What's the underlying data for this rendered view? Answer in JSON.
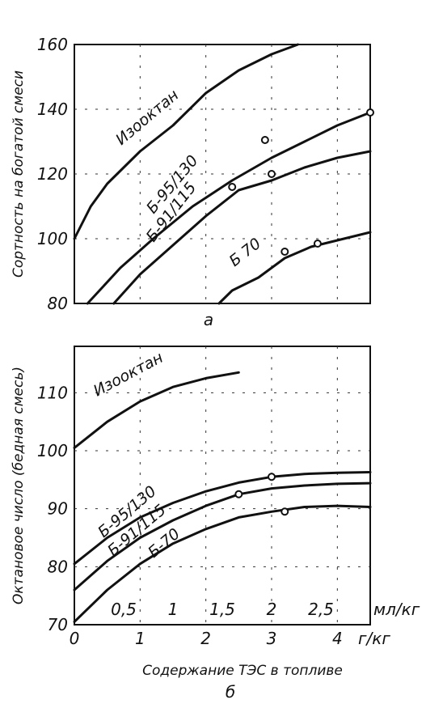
{
  "chart_data": [
    {
      "panel_label": "а",
      "type": "line",
      "ylabel": "Сортность на богатой смеси",
      "ylim": [
        80,
        160
      ],
      "xlim": [
        0,
        4.5
      ],
      "y_ticks": [
        "80",
        "100",
        "120",
        "140",
        "160"
      ],
      "grid": true,
      "series": [
        {
          "name": "Изооктан",
          "x": [
            0,
            0.25,
            0.5,
            1,
            1.5,
            2,
            2.5,
            3,
            3.4
          ],
          "y": [
            100,
            110,
            117,
            127,
            135,
            145,
            152,
            157,
            160
          ],
          "markers": []
        },
        {
          "name": "Б-95/130",
          "x": [
            0.2,
            0.7,
            1.2,
            1.8,
            2.4,
            3,
            3.5,
            4,
            4.5
          ],
          "y": [
            80,
            91,
            100,
            110,
            118,
            125,
            130,
            135,
            139
          ],
          "markers": [
            [
              2.9,
              130.5
            ],
            [
              4.5,
              139
            ]
          ]
        },
        {
          "name": "Б-91/115",
          "x": [
            0.6,
            1,
            1.5,
            2,
            2.5,
            3,
            3.5,
            4,
            4.5
          ],
          "y": [
            80,
            89,
            98,
            107,
            115,
            118,
            122,
            125,
            127
          ],
          "markers": [
            [
              2.4,
              116
            ],
            [
              3.0,
              120
            ]
          ]
        },
        {
          "name": "Б 70",
          "x": [
            2.2,
            2.4,
            2.8,
            3.2,
            3.6,
            4,
            4.5
          ],
          "y": [
            80,
            84,
            88,
            94,
            97.5,
            99.5,
            102
          ],
          "markers": [
            [
              3.2,
              96
            ],
            [
              3.7,
              98.5
            ]
          ]
        }
      ]
    },
    {
      "panel_label": "б",
      "type": "line",
      "ylabel": "Октановое число (бедная смесь)",
      "xlabel": "Содержание ТЭС в топливе",
      "ylim": [
        70,
        118
      ],
      "xlim": [
        0,
        4.5
      ],
      "y_ticks": [
        "70",
        "80",
        "90",
        "100",
        "110"
      ],
      "x_ticks_gkg": [
        "0",
        "1",
        "2",
        "3",
        "4"
      ],
      "x_unit_gkg": "г/кг",
      "x_ticks_mlkg": [
        "0,5",
        "1",
        "1,5",
        "2",
        "2,5"
      ],
      "x_unit_mlkg": "мл/кг",
      "grid": true,
      "series": [
        {
          "name": "Изооктан",
          "x": [
            0,
            0.5,
            1,
            1.5,
            2,
            2.5
          ],
          "y": [
            100.5,
            105,
            108.5,
            111,
            112.5,
            113.5
          ],
          "markers": []
        },
        {
          "name": "Б-95/130",
          "x": [
            0,
            0.5,
            1,
            1.5,
            2,
            2.5,
            3,
            3.5,
            4,
            4.5
          ],
          "y": [
            80.5,
            85,
            88.5,
            91,
            93,
            94.5,
            95.5,
            96,
            96.2,
            96.3
          ],
          "markers": [
            [
              3.0,
              95.5
            ]
          ]
        },
        {
          "name": "Б-91/115",
          "x": [
            0,
            0.5,
            1,
            1.5,
            2,
            2.5,
            3,
            3.5,
            4,
            4.5
          ],
          "y": [
            76,
            81,
            85,
            88,
            90.5,
            92.5,
            93.5,
            94,
            94.3,
            94.4
          ],
          "markers": [
            [
              2.5,
              92.5
            ]
          ]
        },
        {
          "name": "Б-70",
          "x": [
            0,
            0.5,
            1,
            1.5,
            2,
            2.5,
            3,
            3.5,
            4,
            4.5
          ],
          "y": [
            70.5,
            76,
            80.5,
            84,
            86.5,
            88.5,
            89.5,
            90.3,
            90.5,
            90.3
          ],
          "markers": [
            [
              3.2,
              89.5
            ]
          ]
        }
      ]
    }
  ]
}
